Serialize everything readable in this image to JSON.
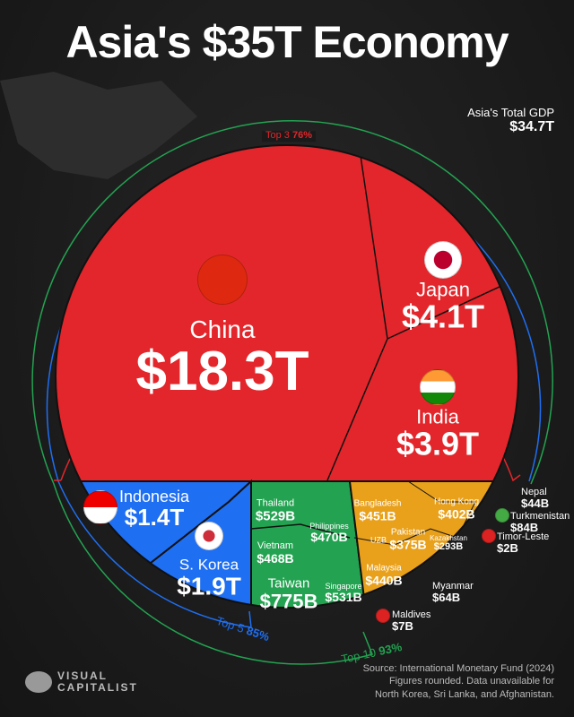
{
  "title": "Asia's $35T Economy",
  "total": {
    "label": "Asia's Total GDP",
    "value": "$34.7T"
  },
  "arcs": {
    "top3": {
      "label": "Top 3",
      "pct": "76%"
    },
    "top5": {
      "label": "Top 5",
      "pct": "85%"
    },
    "top10": {
      "label": "Top 10",
      "pct": "93%"
    }
  },
  "colors": {
    "top3": "#e3262b",
    "top5": "#1f6ff2",
    "top10": "#23a351",
    "rest": "#e9a11c"
  },
  "chart_data": {
    "type": "voronoi-treemap",
    "title": "Asia's $35T Economy",
    "unit": "GDP (USD)",
    "countries": [
      {
        "name": "China",
        "value": "$18.3T",
        "group": "top3"
      },
      {
        "name": "Japan",
        "value": "$4.1T",
        "group": "top3"
      },
      {
        "name": "India",
        "value": "$3.9T",
        "group": "top3"
      },
      {
        "name": "Indonesia",
        "value": "$1.4T",
        "group": "top5"
      },
      {
        "name": "S. Korea",
        "value": "$1.9T",
        "group": "top5"
      },
      {
        "name": "Taiwan",
        "value": "$775B",
        "group": "top10"
      },
      {
        "name": "Singapore",
        "value": "$531B",
        "group": "top10"
      },
      {
        "name": "Thailand",
        "value": "$529B",
        "group": "top10"
      },
      {
        "name": "Philippines",
        "value": "$470B",
        "group": "top10"
      },
      {
        "name": "Vietnam",
        "value": "$468B",
        "group": "top10"
      },
      {
        "name": "Bangladesh",
        "value": "$451B",
        "group": "rest"
      },
      {
        "name": "Malaysia",
        "value": "$440B",
        "group": "rest"
      },
      {
        "name": "Hong Kong",
        "value": "$402B",
        "group": "rest"
      },
      {
        "name": "Pakistan",
        "value": "$375B",
        "group": "rest"
      },
      {
        "name": "Kazakhstan",
        "value": "$293B",
        "group": "rest"
      },
      {
        "name": "UZB",
        "value": "",
        "group": "rest"
      },
      {
        "name": "Turkmenistan",
        "value": "$84B",
        "group": "rest"
      },
      {
        "name": "Myanmar",
        "value": "$64B",
        "group": "rest"
      },
      {
        "name": "Nepal",
        "value": "$44B",
        "group": "rest"
      },
      {
        "name": "Maldives",
        "value": "$7B",
        "group": "rest"
      },
      {
        "name": "Timor-Leste",
        "value": "$2B",
        "group": "rest"
      }
    ]
  },
  "source": {
    "line1": "Source: International Monetary Fund (2024)",
    "line2": "Figures rounded. Data unavailable for",
    "line3": "North Korea, Sri Lanka, and Afghanistan."
  },
  "logo": {
    "line1": "VISUAL",
    "line2": "CAPITALIST"
  }
}
